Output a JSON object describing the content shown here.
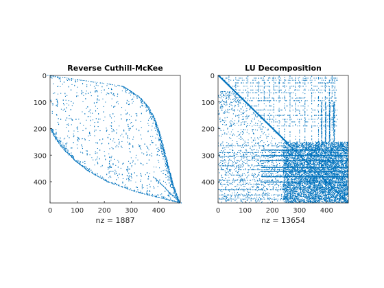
{
  "chart_data": [
    {
      "type": "scatter",
      "subtype": "sparsity-pattern",
      "title": "Reverse Cuthill-McKee",
      "xlabel": "nz = 1887",
      "nz": 1887,
      "n": 480,
      "xlim": [
        0,
        480
      ],
      "ylim": [
        0,
        480
      ],
      "y_reversed": true,
      "xticks": [
        0,
        100,
        200,
        300,
        400
      ],
      "yticks": [
        0,
        100,
        200,
        300,
        400
      ],
      "color": "#0072BD",
      "pattern": {
        "banded": true,
        "profile_y": [
          0,
          40,
          80,
          120,
          160,
          200,
          240,
          280,
          320,
          360,
          400,
          440,
          480
        ],
        "profile_upper_x": [
          0,
          270,
          330,
          365,
          385,
          400,
          412,
          422,
          432,
          442,
          452,
          464,
          480
        ],
        "profile_lower_x": [
          0,
          0,
          0,
          0,
          0,
          0,
          20,
          50,
          90,
          140,
          210,
          320,
          480
        ]
      }
    },
    {
      "type": "scatter",
      "subtype": "sparsity-pattern",
      "title": "LU Decomposition",
      "xlabel": "nz = 13654",
      "nz": 13654,
      "n": 480,
      "xlim": [
        0,
        480
      ],
      "ylim": [
        0,
        480
      ],
      "y_reversed": true,
      "xticks": [
        0,
        100,
        200,
        300,
        400
      ],
      "yticks": [
        0,
        100,
        200,
        300,
        400
      ],
      "color": "#0072BD",
      "pattern": {
        "diagonal": true,
        "dense_block_start": 250
      }
    }
  ]
}
